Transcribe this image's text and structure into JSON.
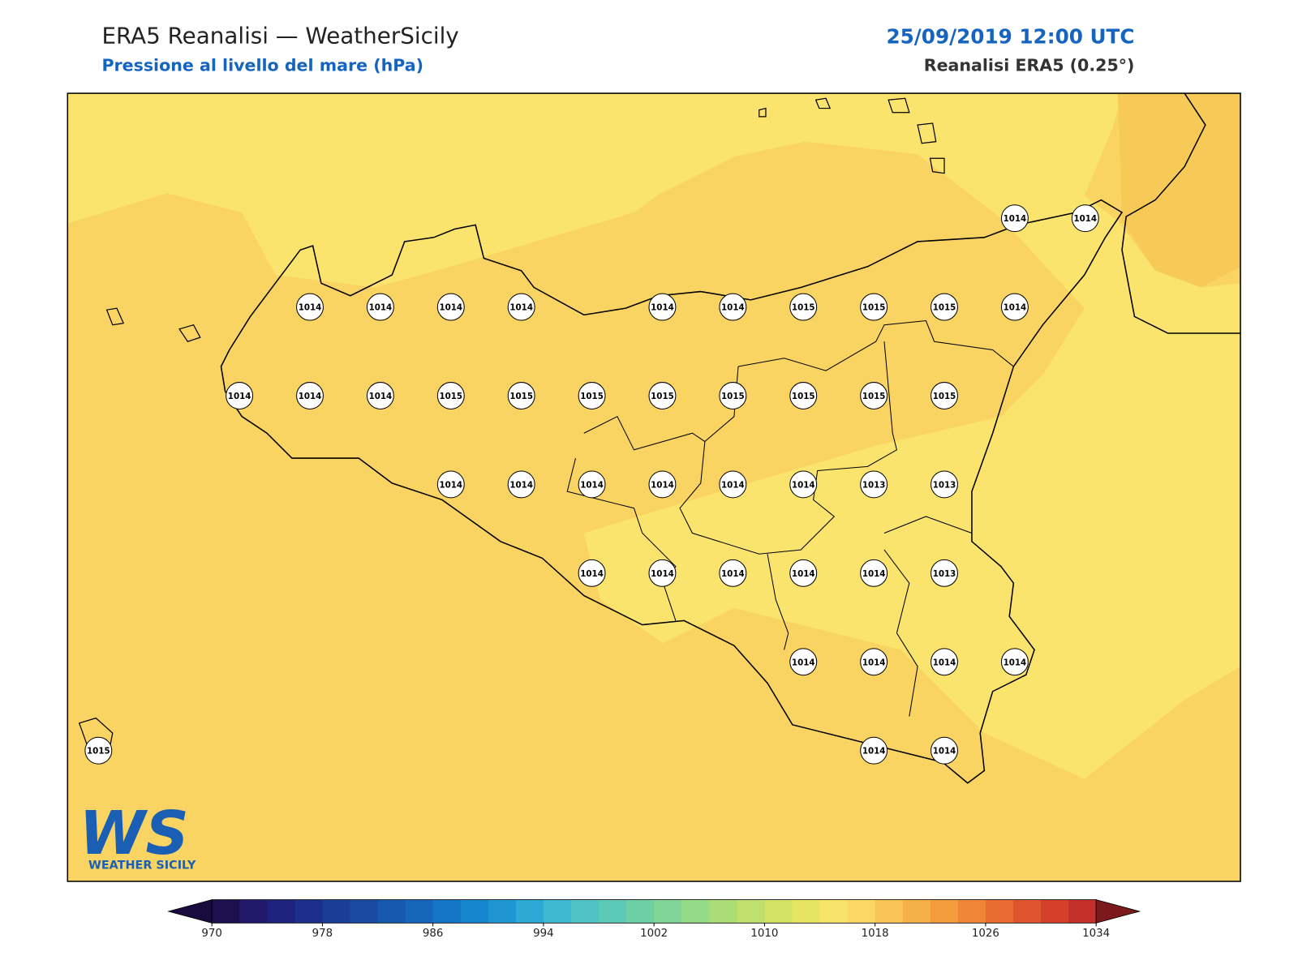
{
  "header": {
    "title": "ERA5 Reanalisi — WeatherSicily",
    "subtitle": "Pressione al livello del mare (hPa)",
    "datetime": "25/09/2019 12:00 UTC",
    "source": "Reanalisi ERA5 (0.25°)"
  },
  "stations": [
    1014,
    1014,
    1014,
    1014,
    1014,
    1014,
    1014,
    1014,
    1015,
    1015,
    1015,
    1014,
    1014,
    1014,
    1014,
    1015,
    1015,
    1015,
    1015,
    1015,
    1015,
    1015,
    1015,
    1014,
    1014,
    1014,
    1014,
    1014,
    1014,
    1013,
    1013,
    1014,
    1014,
    1014,
    1014,
    1014,
    1013,
    1014,
    1014,
    1014,
    1014,
    1015,
    1014,
    1014
  ],
  "colorbar": {
    "range": [
      970,
      1034
    ],
    "step": 2,
    "ticks": [
      970,
      978,
      986,
      994,
      1002,
      1010,
      1018,
      1026,
      1034
    ],
    "colors": [
      "#1e0f4f",
      "#211a6b",
      "#1f237d",
      "#1c2f8a",
      "#1a3d96",
      "#1a4ba3",
      "#1859b0",
      "#1667bc",
      "#1476c6",
      "#1585cd",
      "#1f96d2",
      "#2ea8d4",
      "#3fb8d2",
      "#4fc3c6",
      "#5ccab6",
      "#6dd0a5",
      "#80d596",
      "#95da86",
      "#aadd76",
      "#bfe06c",
      "#d3e265",
      "#e6e462",
      "#f7e46a",
      "#fbd865",
      "#f9c556",
      "#f5b148",
      "#f29c3e",
      "#ee8537",
      "#e86c31",
      "#e0552d",
      "#d5402b",
      "#c4302a"
    ],
    "under_color": "#1a0b3f",
    "over_color": "#7a1a1c"
  },
  "logo": {
    "letters": "WS",
    "name": "WEATHER SICILY"
  }
}
